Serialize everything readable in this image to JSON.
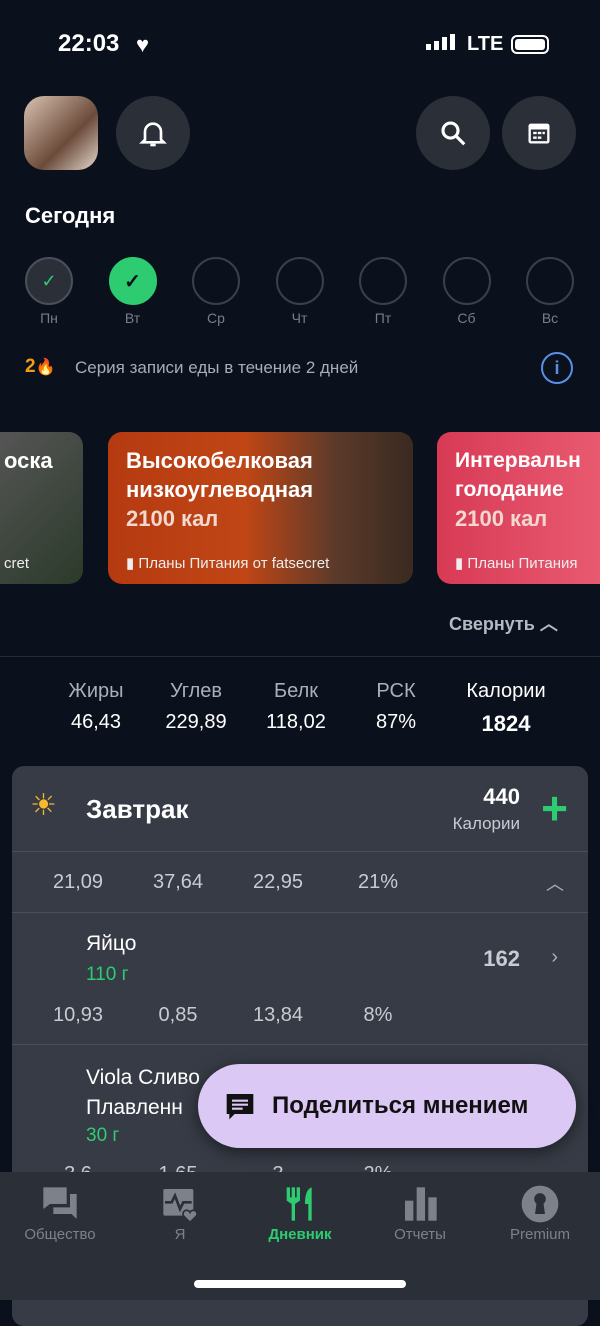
{
  "status": {
    "time": "22:03",
    "network": "LTE"
  },
  "header": {
    "title": "Сегодня"
  },
  "week": [
    {
      "label": "Пн",
      "state": "done-outline"
    },
    {
      "label": "Вт",
      "state": "done-filled"
    },
    {
      "label": "Ср",
      "state": "empty"
    },
    {
      "label": "Чт",
      "state": "empty"
    },
    {
      "label": "Пт",
      "state": "empty"
    },
    {
      "label": "Сб",
      "state": "empty"
    },
    {
      "label": "Вс",
      "state": "empty"
    }
  ],
  "streak": {
    "count": "2",
    "text": "Серия записи еды в течение 2 дней"
  },
  "plans": [
    {
      "title": "оска",
      "source": "cret"
    },
    {
      "title": "Высокобелковая низкоуглеводная",
      "kcal": "2100 кал",
      "source": "Планы Питания от fatsecret"
    },
    {
      "title": "Интервальн голодание",
      "kcal": "2100 кал",
      "source": "Планы Питания"
    }
  ],
  "collapse_label": "Свернуть",
  "totals": [
    {
      "label": "Жиры",
      "value": "46,43"
    },
    {
      "label": "Углев",
      "value": "229,89"
    },
    {
      "label": "Белк",
      "value": "118,02"
    },
    {
      "label": "РСК",
      "value": "87%"
    },
    {
      "label": "Калории",
      "value": "1824"
    }
  ],
  "breakfast": {
    "title": "Завтрак",
    "calories": "440",
    "calories_label": "Калории",
    "macros": [
      "21,09",
      "37,64",
      "22,95",
      "21%"
    ],
    "items": [
      {
        "name": "Яйцо",
        "amount": "110 г",
        "calories": "162",
        "macros": [
          "10,93",
          "0,85",
          "13,84",
          "8%"
        ]
      },
      {
        "name": "Viola Сливо Плавленн",
        "amount": "30 г",
        "macros": [
          "3,6",
          "1,65",
          "3",
          "2%"
        ]
      }
    ]
  },
  "feedback_button": "Поделиться мнением",
  "nav": [
    {
      "label": "Общество"
    },
    {
      "label": "Я"
    },
    {
      "label": "Дневник",
      "active": true
    },
    {
      "label": "Отчеты"
    },
    {
      "label": "Premium"
    }
  ],
  "colors": {
    "accent": "#2ecc71",
    "background": "#0a111c",
    "panel": "#363b45",
    "feedback": "#dcc8f5"
  }
}
